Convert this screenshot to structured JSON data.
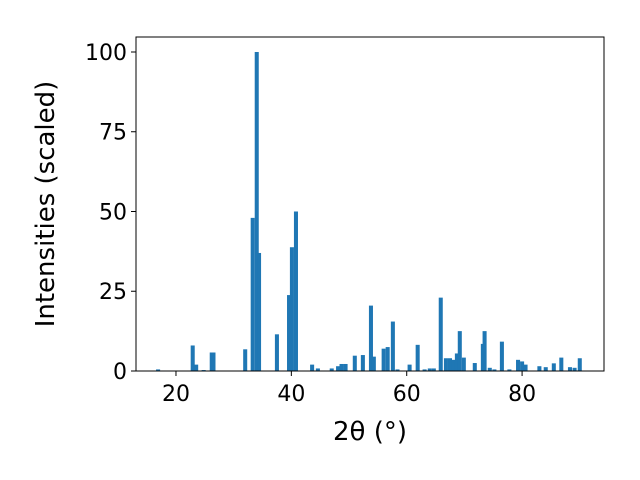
{
  "chart_data": {
    "type": "bar",
    "xlabel": "2θ (°)",
    "ylabel": "Intensities (scaled)",
    "x": [
      16.9,
      22.9,
      23.5,
      24.8,
      26.2,
      26.5,
      32.0,
      33.3,
      34.0,
      34.4,
      37.5,
      39.6,
      40.1,
      40.8,
      43.6,
      44.6,
      47.0,
      48.1,
      48.7,
      49.4,
      51.0,
      52.4,
      53.8,
      54.3,
      56.0,
      56.7,
      57.6,
      58.4,
      60.5,
      61.9,
      63.1,
      64.0,
      64.7,
      65.9,
      66.8,
      67.5,
      68.1,
      68.7,
      69.2,
      69.9,
      71.8,
      73.2,
      73.5,
      74.4,
      75.2,
      76.5,
      77.8,
      79.3,
      80.0,
      80.6,
      83.0,
      84.1,
      85.5,
      86.8,
      88.3,
      89.1,
      90.0
    ],
    "values": [
      0.5,
      8,
      2,
      0.3,
      5.8,
      5.8,
      6.8,
      48,
      100,
      37,
      11.5,
      23.8,
      38.8,
      50,
      2,
      0.8,
      0.8,
      1.5,
      2.2,
      2.2,
      4.8,
      5,
      20.5,
      4.5,
      7,
      7.5,
      15.5,
      0.5,
      2,
      8.2,
      0.5,
      0.8,
      0.8,
      23,
      4,
      4,
      3.5,
      5.5,
      12.5,
      4.2,
      2.5,
      8.5,
      12.5,
      1,
      0.5,
      9.2,
      0.5,
      3.5,
      3,
      2,
      1.5,
      1.2,
      2.4,
      4.2,
      1.2,
      1,
      4
    ],
    "bar_width": 0.7,
    "color": "#1f77b4",
    "xlim": [
      13.07,
      94.2
    ],
    "xticks": [
      20,
      40,
      60,
      80
    ],
    "ylim": [
      0,
      104.7
    ],
    "yticks": [
      0,
      25,
      50,
      75,
      100
    ],
    "grid": false
  }
}
